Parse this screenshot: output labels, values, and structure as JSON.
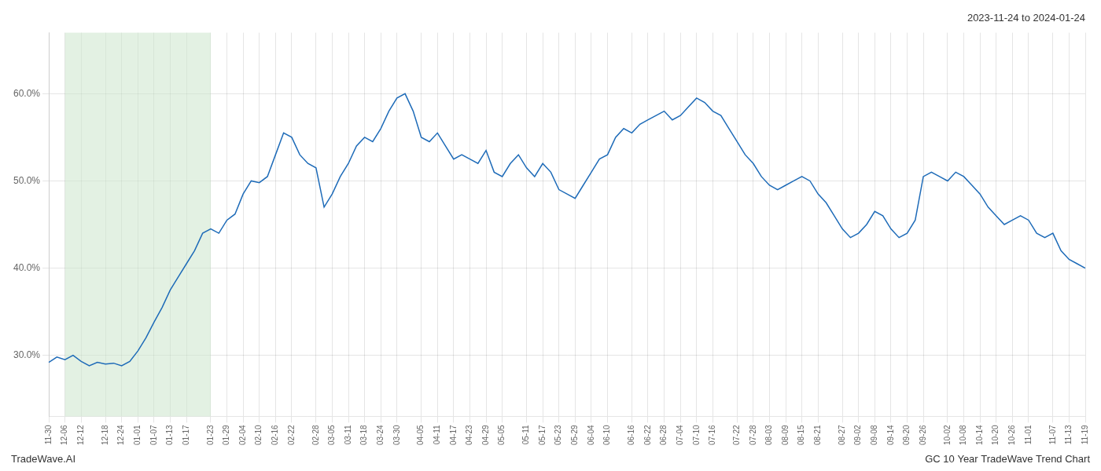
{
  "chart_data": {
    "type": "line",
    "title": "2023-11-24 to 2024-01-24",
    "annotations": [
      "TradeWave.AI",
      "GC 10 Year TradeWave Trend Chart"
    ],
    "categories": [
      "11-30",
      null,
      "12-06",
      null,
      "12-12",
      null,
      null,
      "12-18",
      null,
      "12-24",
      null,
      "01-01",
      null,
      "01-07",
      null,
      "01-13",
      null,
      "01-17",
      null,
      null,
      "01-23",
      null,
      "01-29",
      null,
      "02-04",
      null,
      "02-10",
      null,
      "02-16",
      null,
      "02-22",
      null,
      null,
      "02-28",
      null,
      "03-05",
      null,
      "03-11",
      null,
      "03-18",
      null,
      "03-24",
      null,
      "03-30",
      null,
      null,
      "04-05",
      null,
      "04-11",
      null,
      "04-17",
      null,
      "04-23",
      null,
      "04-29",
      null,
      "05-05",
      null,
      null,
      "05-11",
      null,
      "05-17",
      null,
      "05-23",
      null,
      "05-29",
      null,
      "06-04",
      null,
      "06-10",
      null,
      null,
      "06-16",
      null,
      "06-22",
      null,
      "06-28",
      null,
      "07-04",
      null,
      "07-10",
      null,
      "07-16",
      null,
      null,
      "07-22",
      null,
      "07-28",
      null,
      "08-03",
      null,
      "08-09",
      null,
      "08-15",
      null,
      "08-21",
      null,
      null,
      "08-27",
      null,
      "09-02",
      null,
      "09-08",
      null,
      "09-14",
      null,
      "09-20",
      null,
      "09-26",
      null,
      null,
      "10-02",
      null,
      "10-08",
      null,
      "10-14",
      null,
      "10-20",
      null,
      "10-26",
      null,
      "11-01",
      null,
      null,
      "11-07",
      null,
      "11-13",
      null,
      "11-19"
    ],
    "values": [
      29.2,
      29.8,
      29.5,
      30.0,
      29.3,
      28.8,
      29.2,
      29.0,
      29.1,
      28.8,
      29.3,
      30.5,
      32.0,
      33.8,
      35.5,
      37.5,
      39.0,
      40.5,
      42.0,
      44.0,
      44.5,
      44.0,
      45.5,
      46.2,
      48.5,
      50.0,
      49.8,
      50.5,
      53.0,
      55.5,
      55.0,
      53.0,
      52.0,
      51.5,
      47.0,
      48.5,
      50.5,
      52.0,
      54.0,
      55.0,
      54.5,
      56.0,
      58.0,
      59.5,
      60.0,
      58.0,
      55.0,
      54.5,
      55.5,
      54.0,
      52.5,
      53.0,
      52.5,
      52.0,
      53.5,
      51.0,
      50.5,
      52.0,
      53.0,
      51.5,
      50.5,
      52.0,
      51.0,
      49.0,
      48.5,
      48.0,
      49.5,
      51.0,
      52.5,
      53.0,
      55.0,
      56.0,
      55.5,
      56.5,
      57.0,
      57.5,
      58.0,
      57.0,
      57.5,
      58.5,
      59.5,
      59.0,
      58.0,
      57.5,
      56.0,
      54.5,
      53.0,
      52.0,
      50.5,
      49.5,
      49.0,
      49.5,
      50.0,
      50.5,
      50.0,
      48.5,
      47.5,
      46.0,
      44.5,
      43.5,
      44.0,
      45.0,
      46.5,
      46.0,
      44.5,
      43.5,
      44.0,
      45.5,
      50.5,
      51.0,
      50.5,
      50.0,
      51.0,
      50.5,
      49.5,
      48.5,
      47.0,
      46.0,
      45.0,
      45.5,
      46.0,
      45.5,
      44.0,
      43.5,
      44.0,
      42.0,
      41.0,
      40.5,
      40.0
    ],
    "color": "#1e6bb8",
    "highlight": {
      "start": "12-06",
      "end": "01-23",
      "color": "#cce5cc"
    },
    "ylim": [
      23,
      67
    ],
    "yticks": [
      {
        "value": 30.0,
        "label": "30.0%"
      },
      {
        "value": 40.0,
        "label": "40.0%"
      },
      {
        "value": 50.0,
        "label": "50.0%"
      },
      {
        "value": 60.0,
        "label": "60.0%"
      }
    ],
    "grid": true
  }
}
